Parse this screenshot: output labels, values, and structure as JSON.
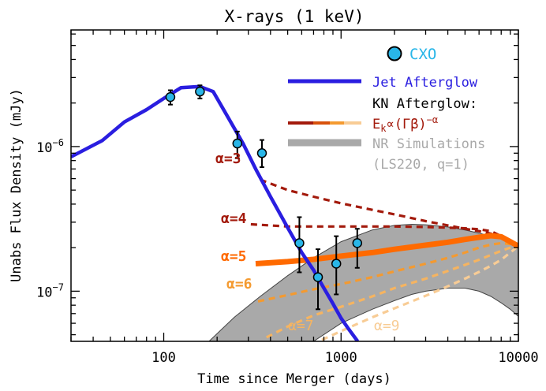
{
  "chart_data": {
    "type": "line",
    "title": "X-rays (1 keV)",
    "xlabel": "Time since Merger (days)",
    "ylabel": "Unabs Flux Density (mJy)",
    "x_scale": "log",
    "y_scale": "log",
    "xlim": [
      30,
      10000
    ],
    "ylim": [
      4.5e-08,
      6.4e-06
    ],
    "x_ticks": [
      {
        "value": 100,
        "label": "100"
      },
      {
        "value": 1000,
        "label": "1000"
      },
      {
        "value": 10000,
        "label": "10000"
      }
    ],
    "y_ticks": [
      {
        "value": 1e-07,
        "base": "10",
        "exp": "−7"
      },
      {
        "value": 1e-06,
        "base": "10",
        "exp": "−6"
      }
    ],
    "grid": false,
    "legend": {
      "position": "top-right",
      "cxo": "CXO",
      "jet": "Jet Afterglow",
      "kn_header": "KN Afterglow:",
      "kn_formula": "E_k ∝ (Γβ)^−α",
      "kn_E": "E",
      "kn_sub": "k",
      "kn_mid": "∝(Γβ)",
      "kn_sup": "−α",
      "nr": "NR Simulations",
      "nr_note": "(LS220, q=1)"
    },
    "colors": {
      "jet": "#2a1ee0",
      "cxo_fill": "#29b6e8",
      "alpha3": "#a31a0c",
      "alpha4": "#a31a0c",
      "alpha5": "#ff6a00",
      "alpha6": "#f49a30",
      "alpha7": "#f6b460",
      "alpha9": "#f8cc95",
      "nr_band": "#a9a9a9"
    },
    "cxo_points": [
      {
        "t": 109,
        "f": 2.2e-06,
        "err_lo": 2.5e-07,
        "err_hi": 2.5e-07
      },
      {
        "t": 160,
        "f": 2.4e-06,
        "err_lo": 2.5e-07,
        "err_hi": 2.5e-07
      },
      {
        "t": 260,
        "f": 1.05e-06,
        "err_lo": 2.2e-07,
        "err_hi": 2.2e-07
      },
      {
        "t": 358,
        "f": 9e-07,
        "err_lo": 1.8e-07,
        "err_hi": 2.1e-07
      },
      {
        "t": 582,
        "f": 2.15e-07,
        "err_lo": 8e-08,
        "err_hi": 1.1e-07
      },
      {
        "t": 741,
        "f": 1.25e-07,
        "err_lo": 5e-08,
        "err_hi": 7e-08
      },
      {
        "t": 940,
        "f": 1.55e-07,
        "err_lo": 6e-08,
        "err_hi": 8.5e-08
      },
      {
        "t": 1234,
        "f": 2.15e-07,
        "err_lo": 7e-08,
        "err_hi": 5.5e-08
      }
    ],
    "series": [
      {
        "key": "jet",
        "x": [
          30,
          45,
          60,
          80,
          100,
          125,
          160,
          190,
          230,
          280,
          330,
          400,
          500,
          600,
          700,
          800,
          900,
          1000,
          1100,
          1240
        ],
        "y": [
          8.5e-07,
          1.1e-06,
          1.48e-06,
          1.8e-06,
          2.15e-06,
          2.55e-06,
          2.6e-06,
          2.4e-06,
          1.6e-06,
          1.05e-06,
          7e-07,
          4.5e-07,
          2.75e-07,
          1.85e-07,
          1.4e-07,
          1.05e-07,
          8.2e-08,
          6.5e-08,
          5.5e-08,
          4.5e-08
        ]
      },
      {
        "key": "alpha3",
        "label": "α=3",
        "x": [
          350,
          500,
          700,
          1000,
          1500,
          2000,
          3000,
          4000,
          5000,
          6000,
          7000,
          8000,
          9000,
          10000
        ],
        "y": [
          5.9e-07,
          5e-07,
          4.5e-07,
          4.05e-07,
          3.65e-07,
          3.4e-07,
          3.05e-07,
          2.85e-07,
          2.7e-07,
          2.6e-07,
          2.5e-07,
          2.35e-07,
          2.2e-07,
          2.05e-07
        ]
      },
      {
        "key": "alpha4",
        "label": "α=4",
        "x": [
          310,
          500,
          700,
          1000,
          1500,
          2000,
          3000,
          4000,
          5000,
          6000,
          7000,
          8000,
          9000,
          10000
        ],
        "y": [
          2.9e-07,
          2.8e-07,
          2.8e-07,
          2.8e-07,
          2.8e-07,
          2.8e-07,
          2.78e-07,
          2.75e-07,
          2.72e-07,
          2.68e-07,
          2.6e-07,
          2.4e-07,
          2.2e-07,
          2.05e-07
        ]
      },
      {
        "key": "alpha5",
        "label": "α=5",
        "x": [
          330,
          500,
          700,
          1000,
          1500,
          2000,
          3000,
          4000,
          5000,
          6000,
          7000,
          8000,
          9000,
          10000
        ],
        "y": [
          1.55e-07,
          1.6e-07,
          1.66e-07,
          1.75e-07,
          1.85e-07,
          1.95e-07,
          2.08e-07,
          2.18e-07,
          2.28e-07,
          2.36e-07,
          2.42e-07,
          2.38e-07,
          2.2e-07,
          2.05e-07
        ]
      },
      {
        "key": "alpha6",
        "label": "α=6",
        "x": [
          340,
          500,
          700,
          1000,
          1500,
          2000,
          3000,
          4000,
          5000,
          6000,
          7000,
          8000,
          9000,
          10000
        ],
        "y": [
          8.5e-08,
          9.4e-08,
          1.03e-07,
          1.12e-07,
          1.25e-07,
          1.37e-07,
          1.55e-07,
          1.7e-07,
          1.85e-07,
          2e-07,
          2.1e-07,
          2.15e-07,
          2.12e-07,
          2.05e-07
        ]
      },
      {
        "key": "alpha7",
        "label": "α=7",
        "x": [
          380,
          500,
          700,
          1000,
          1500,
          2000,
          3000,
          4000,
          5000,
          6000,
          7000,
          8000,
          9000,
          10000
        ],
        "y": [
          4.8e-08,
          5.7e-08,
          6.8e-08,
          7.8e-08,
          9.2e-08,
          1.05e-07,
          1.22e-07,
          1.38e-07,
          1.52e-07,
          1.65e-07,
          1.78e-07,
          1.9e-07,
          2e-07,
          2.05e-07
        ]
      },
      {
        "key": "alpha9",
        "label": "α=9",
        "x": [
          780,
          1000,
          1500,
          2000,
          3000,
          4000,
          5000,
          6000,
          7000,
          8000,
          9000,
          10000
        ],
        "y": [
          4.6e-08,
          5.3e-08,
          6.6e-08,
          7.6e-08,
          9.3e-08,
          1.08e-07,
          1.22e-07,
          1.36e-07,
          1.5e-07,
          1.65e-07,
          1.85e-07,
          2.05e-07
        ]
      }
    ],
    "nr_band": {
      "x": [
        180,
        250,
        350,
        500,
        700,
        1000,
        1500,
        2000,
        2500,
        3000,
        4000,
        5000,
        6000,
        7000,
        8000,
        9000,
        10000
      ],
      "upper": [
        4.5e-08,
        6.6e-08,
        9.2e-08,
        1.28e-07,
        1.7e-07,
        2.2e-07,
        2.65e-07,
        2.85e-07,
        2.9e-07,
        2.88e-07,
        2.78e-07,
        2.65e-07,
        2.52e-07,
        2.4e-07,
        2.3e-07,
        2.18e-07,
        2.05e-07
      ],
      "lower": [
        null,
        null,
        null,
        null,
        4.5e-08,
        6e-08,
        7.5e-08,
        8.6e-08,
        9.5e-08,
        1e-07,
        1.05e-07,
        1.05e-07,
        1e-07,
        9.2e-08,
        8.3e-08,
        7.5e-08,
        6.7e-08
      ]
    }
  }
}
